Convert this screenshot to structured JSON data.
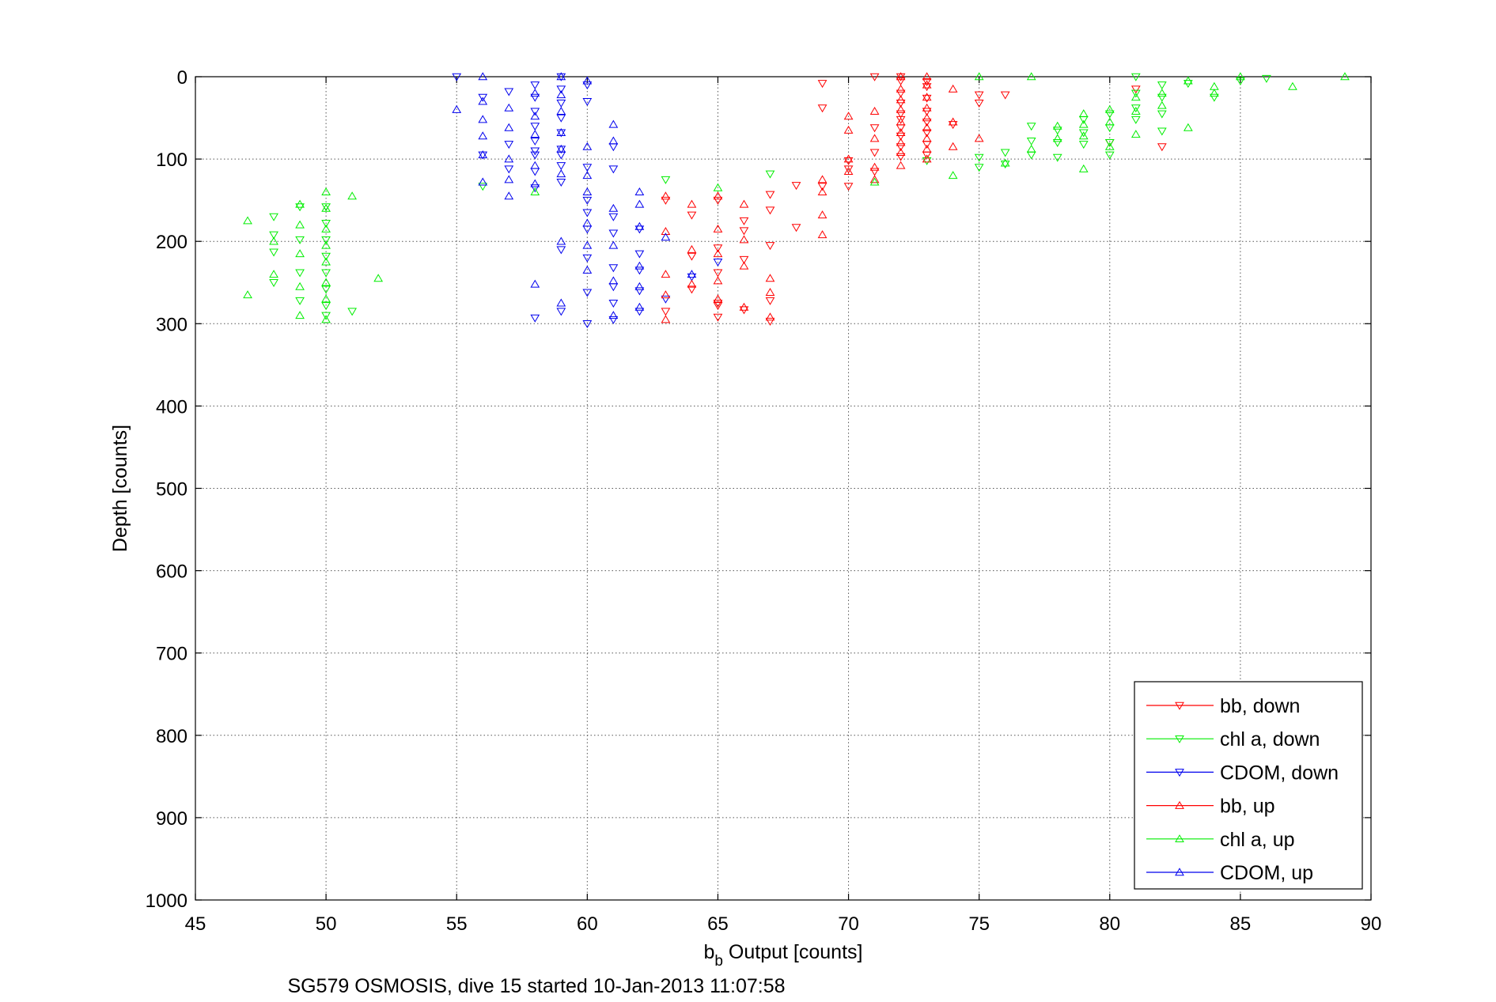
{
  "chart_data": {
    "type": "scatter",
    "title": "",
    "xlabel_main": "b",
    "xlabel_sub": "b",
    "xlabel_rest": " Output [counts]",
    "ylabel": "Depth [counts]",
    "caption": "SG579 OSMOSIS, dive 15 started 10-Jan-2013 11:07:58",
    "xlim": [
      45,
      90
    ],
    "ylim": [
      0,
      1000
    ],
    "y_reversed": true,
    "grid": true,
    "xticks": [
      "45",
      "50",
      "55",
      "60",
      "65",
      "70",
      "75",
      "80",
      "85",
      "90"
    ],
    "yticks": [
      "0",
      "100",
      "200",
      "300",
      "400",
      "500",
      "600",
      "700",
      "800",
      "900",
      "1000"
    ],
    "legend_position": "bottom-right",
    "series": [
      {
        "name": "bb, down",
        "color": "#ff0000",
        "marker": "triangle-down",
        "points": [
          [
            70,
            102
          ],
          [
            70,
            112
          ],
          [
            71,
            0
          ],
          [
            71,
            62
          ],
          [
            71,
            92
          ],
          [
            72,
            0
          ],
          [
            72,
            5
          ],
          [
            72,
            20
          ],
          [
            72,
            32
          ],
          [
            72,
            45
          ],
          [
            72,
            52
          ],
          [
            72,
            62
          ],
          [
            72,
            72
          ],
          [
            72,
            85
          ],
          [
            72,
            97
          ],
          [
            73,
            12
          ],
          [
            73,
            26
          ],
          [
            73,
            42
          ],
          [
            73,
            55
          ],
          [
            73,
            68
          ],
          [
            73,
            82
          ],
          [
            73,
            95
          ],
          [
            74,
            58
          ],
          [
            75,
            22
          ],
          [
            75,
            32
          ],
          [
            76,
            22
          ],
          [
            80,
            80
          ],
          [
            81,
            15
          ],
          [
            82,
            85
          ],
          [
            69,
            8
          ],
          [
            69,
            38
          ],
          [
            71,
            115
          ],
          [
            73,
            6
          ],
          [
            70,
            133
          ],
          [
            69,
            133
          ],
          [
            68,
            132
          ],
          [
            67,
            143
          ],
          [
            67,
            162
          ],
          [
            66,
            175
          ],
          [
            66,
            187
          ],
          [
            65,
            150
          ],
          [
            65,
            208
          ],
          [
            65,
            238
          ],
          [
            64,
            218
          ],
          [
            63,
            150
          ],
          [
            66,
            222
          ],
          [
            65,
            275
          ],
          [
            65,
            292
          ],
          [
            64,
            258
          ],
          [
            64,
            168
          ],
          [
            67,
            297
          ],
          [
            66,
            283
          ],
          [
            63,
            285
          ],
          [
            67,
            272
          ],
          [
            67,
            205
          ],
          [
            68,
            183
          ],
          [
            65,
            278
          ]
        ]
      },
      {
        "name": "chl a, down",
        "color": "#00ee00",
        "marker": "triangle-down",
        "points": [
          [
            48,
            170
          ],
          [
            48,
            192
          ],
          [
            48,
            213
          ],
          [
            48,
            250
          ],
          [
            49,
            158
          ],
          [
            49,
            198
          ],
          [
            49,
            238
          ],
          [
            49,
            272
          ],
          [
            50,
            158
          ],
          [
            50,
            178
          ],
          [
            50,
            198
          ],
          [
            50,
            218
          ],
          [
            50,
            238
          ],
          [
            50,
            258
          ],
          [
            50,
            278
          ],
          [
            50,
            290
          ],
          [
            51,
            285
          ],
          [
            56,
            133
          ],
          [
            63,
            125
          ],
          [
            67,
            118
          ],
          [
            73,
            102
          ],
          [
            75,
            98
          ],
          [
            75,
            110
          ],
          [
            76,
            92
          ],
          [
            76,
            106
          ],
          [
            77,
            60
          ],
          [
            77,
            78
          ],
          [
            77,
            95
          ],
          [
            78,
            65
          ],
          [
            78,
            80
          ],
          [
            78,
            98
          ],
          [
            79,
            52
          ],
          [
            79,
            68
          ],
          [
            79,
            82
          ],
          [
            80,
            45
          ],
          [
            80,
            62
          ],
          [
            80,
            80
          ],
          [
            80,
            95
          ],
          [
            81,
            0
          ],
          [
            81,
            20
          ],
          [
            81,
            38
          ],
          [
            81,
            52
          ],
          [
            82,
            10
          ],
          [
            82,
            25
          ],
          [
            82,
            45
          ],
          [
            82,
            66
          ],
          [
            83,
            8
          ],
          [
            84,
            25
          ],
          [
            85,
            5
          ],
          [
            86,
            2
          ]
        ]
      },
      {
        "name": "CDOM, down",
        "color": "#0000ee",
        "marker": "triangle-down",
        "points": [
          [
            55,
            0
          ],
          [
            56,
            25
          ],
          [
            56,
            95
          ],
          [
            57,
            18
          ],
          [
            57,
            82
          ],
          [
            57,
            112
          ],
          [
            58,
            10
          ],
          [
            58,
            25
          ],
          [
            58,
            42
          ],
          [
            58,
            60
          ],
          [
            58,
            78
          ],
          [
            58,
            95
          ],
          [
            58,
            115
          ],
          [
            58,
            135
          ],
          [
            58,
            293
          ],
          [
            59,
            0
          ],
          [
            59,
            15
          ],
          [
            59,
            32
          ],
          [
            59,
            50
          ],
          [
            59,
            68
          ],
          [
            59,
            88
          ],
          [
            59,
            108
          ],
          [
            59,
            128
          ],
          [
            59,
            210
          ],
          [
            59,
            285
          ],
          [
            60,
            10
          ],
          [
            60,
            30
          ],
          [
            60,
            110
          ],
          [
            60,
            150
          ],
          [
            60,
            185
          ],
          [
            60,
            220
          ],
          [
            60,
            262
          ],
          [
            60,
            300
          ],
          [
            61,
            85
          ],
          [
            61,
            112
          ],
          [
            61,
            170
          ],
          [
            61,
            190
          ],
          [
            61,
            232
          ],
          [
            61,
            255
          ],
          [
            61,
            275
          ],
          [
            61,
            295
          ],
          [
            62,
            185
          ],
          [
            62,
            215
          ],
          [
            62,
            235
          ],
          [
            62,
            260
          ],
          [
            62,
            285
          ],
          [
            63,
            270
          ],
          [
            64,
            243
          ],
          [
            65,
            225
          ],
          [
            60,
            165
          ],
          [
            58,
            90
          ],
          [
            59,
            95
          ]
        ]
      },
      {
        "name": "bb, up",
        "color": "#ff0000",
        "marker": "triangle-up",
        "points": [
          [
            69,
            125
          ],
          [
            69,
            140
          ],
          [
            69,
            168
          ],
          [
            69,
            192
          ],
          [
            70,
            48
          ],
          [
            70,
            65
          ],
          [
            70,
            100
          ],
          [
            70,
            115
          ],
          [
            71,
            42
          ],
          [
            71,
            75
          ],
          [
            71,
            110
          ],
          [
            71,
            125
          ],
          [
            72,
            0
          ],
          [
            72,
            15
          ],
          [
            72,
            28
          ],
          [
            72,
            40
          ],
          [
            72,
            55
          ],
          [
            72,
            68
          ],
          [
            72,
            80
          ],
          [
            72,
            92
          ],
          [
            72,
            108
          ],
          [
            73,
            0
          ],
          [
            73,
            10
          ],
          [
            73,
            25
          ],
          [
            73,
            38
          ],
          [
            73,
            50
          ],
          [
            73,
            62
          ],
          [
            73,
            75
          ],
          [
            73,
            88
          ],
          [
            73,
            100
          ],
          [
            74,
            15
          ],
          [
            74,
            55
          ],
          [
            74,
            85
          ],
          [
            75,
            75
          ],
          [
            63,
            145
          ],
          [
            63,
            188
          ],
          [
            63,
            240
          ],
          [
            63,
            265
          ],
          [
            63,
            295
          ],
          [
            64,
            155
          ],
          [
            64,
            210
          ],
          [
            64,
            252
          ],
          [
            65,
            145
          ],
          [
            65,
            185
          ],
          [
            65,
            215
          ],
          [
            65,
            248
          ],
          [
            65,
            270
          ],
          [
            66,
            155
          ],
          [
            66,
            198
          ],
          [
            66,
            230
          ],
          [
            66,
            280
          ],
          [
            67,
            245
          ],
          [
            67,
            262
          ],
          [
            67,
            292
          ]
        ]
      },
      {
        "name": "chl a, up",
        "color": "#00ee00",
        "marker": "triangle-up",
        "points": [
          [
            47,
            175
          ],
          [
            47,
            265
          ],
          [
            48,
            200
          ],
          [
            48,
            240
          ],
          [
            49,
            155
          ],
          [
            49,
            180
          ],
          [
            49,
            215
          ],
          [
            49,
            255
          ],
          [
            49,
            290
          ],
          [
            50,
            140
          ],
          [
            50,
            160
          ],
          [
            50,
            185
          ],
          [
            50,
            205
          ],
          [
            50,
            225
          ],
          [
            50,
            250
          ],
          [
            50,
            270
          ],
          [
            50,
            295
          ],
          [
            51,
            145
          ],
          [
            52,
            245
          ],
          [
            58,
            140
          ],
          [
            65,
            135
          ],
          [
            74,
            120
          ],
          [
            76,
            105
          ],
          [
            77,
            0
          ],
          [
            77,
            88
          ],
          [
            78,
            60
          ],
          [
            78,
            75
          ],
          [
            79,
            45
          ],
          [
            79,
            58
          ],
          [
            79,
            72
          ],
          [
            79,
            112
          ],
          [
            80,
            40
          ],
          [
            80,
            55
          ],
          [
            80,
            85
          ],
          [
            81,
            25
          ],
          [
            81,
            42
          ],
          [
            81,
            70
          ],
          [
            82,
            20
          ],
          [
            82,
            35
          ],
          [
            83,
            5
          ],
          [
            83,
            62
          ],
          [
            84,
            12
          ],
          [
            84,
            20
          ],
          [
            85,
            0
          ],
          [
            87,
            12
          ],
          [
            89,
            0
          ],
          [
            71,
            128
          ],
          [
            75,
            0
          ]
        ]
      },
      {
        "name": "CDOM, up",
        "color": "#0000ee",
        "marker": "triangle-up",
        "points": [
          [
            55,
            40
          ],
          [
            56,
            0
          ],
          [
            56,
            30
          ],
          [
            56,
            52
          ],
          [
            56,
            72
          ],
          [
            56,
            95
          ],
          [
            56,
            128
          ],
          [
            57,
            38
          ],
          [
            57,
            62
          ],
          [
            57,
            100
          ],
          [
            57,
            125
          ],
          [
            57,
            145
          ],
          [
            58,
            20
          ],
          [
            58,
            48
          ],
          [
            58,
            70
          ],
          [
            58,
            108
          ],
          [
            58,
            130
          ],
          [
            58,
            252
          ],
          [
            59,
            0
          ],
          [
            59,
            22
          ],
          [
            59,
            42
          ],
          [
            59,
            68
          ],
          [
            59,
            88
          ],
          [
            59,
            118
          ],
          [
            59,
            200
          ],
          [
            59,
            275
          ],
          [
            60,
            5
          ],
          [
            60,
            85
          ],
          [
            60,
            120
          ],
          [
            60,
            140
          ],
          [
            60,
            178
          ],
          [
            60,
            205
          ],
          [
            60,
            235
          ],
          [
            61,
            58
          ],
          [
            61,
            78
          ],
          [
            61,
            160
          ],
          [
            61,
            205
          ],
          [
            61,
            248
          ],
          [
            61,
            290
          ],
          [
            62,
            140
          ],
          [
            62,
            155
          ],
          [
            62,
            182
          ],
          [
            62,
            230
          ],
          [
            62,
            255
          ],
          [
            62,
            280
          ],
          [
            63,
            195
          ],
          [
            64,
            240
          ]
        ]
      }
    ]
  }
}
